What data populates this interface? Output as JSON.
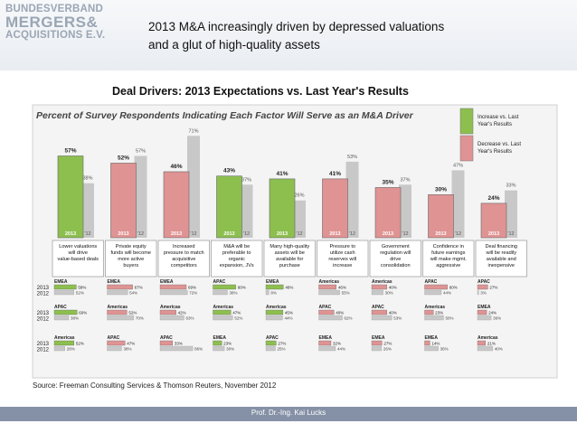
{
  "logo": {
    "line1": "BUNDESVERBAND",
    "line2": "MERGERS&",
    "line3": "ACQUISITIONS E.V."
  },
  "title": {
    "line1": "2013 M&A increasingly driven by depressed valuations",
    "line2": "and a glut of high-quality assets"
  },
  "headline": "Deal Drivers: 2013 Expectations vs. Last Year's Results",
  "footer": "Prof. Dr.-Ing. Kai Lucks",
  "source": "Source: Freeman Consulting Services & Thomson Reuters, November 2012",
  "colors": {
    "increase": "#8dbf4f",
    "decrease": "#e09393",
    "last": "#c8c8c8",
    "footer": "#8591a6"
  },
  "chart_data": {
    "type": "bar",
    "title": "Percent of Survey Respondents Indicating Each Factor Will Serve as an M&A Driver",
    "bar_label_2013": "2013",
    "bar_label_2012": "'12",
    "legend": [
      {
        "label": "Increase vs. Last Year's Results",
        "color": "#8dbf4f"
      },
      {
        "label": "Decrease vs. Last Year's Results",
        "color": "#e09393"
      }
    ],
    "ylim": [
      0,
      80
    ],
    "categories": [
      "Lower valuations will drive value-based deals",
      "Private equity funds will become more active buyers",
      "Increased pressure to match acquisitive competitors",
      "M&A will be preferable to organic expansion, JVs",
      "Many high-quality assets will be available for purchase",
      "Pressure to utilize cash reserves will increase",
      "Government regulation will drive consolidation",
      "Confidence in future earnings will make mgmt. aggressive",
      "Deal financing will be readily available and inexpensive"
    ],
    "series": [
      {
        "name": "2013",
        "values": [
          57,
          52,
          46,
          43,
          41,
          41,
          35,
          30,
          24
        ],
        "labels": [
          "57%",
          "52%",
          "46%",
          "43%",
          "41%",
          "41%",
          "35%",
          "30%",
          "24%"
        ]
      },
      {
        "name": "2012",
        "values": [
          38,
          57,
          71,
          37,
          26,
          53,
          37,
          47,
          33
        ],
        "labels": [
          "38%",
          "57%",
          "71%",
          "37%",
          "26%",
          "53%",
          "37%",
          "47%",
          "33%"
        ]
      }
    ],
    "direction": [
      "increase",
      "decrease",
      "decrease",
      "increase",
      "increase",
      "decrease",
      "decrease",
      "decrease",
      "decrease"
    ],
    "region_year_labels": [
      "2013",
      "2012"
    ],
    "regions": [
      [
        {
          "name": "EMEA",
          "v13": 58,
          "v12": 52,
          "l13": "58%",
          "l12": "52%"
        },
        {
          "name": "APAC",
          "v13": 60,
          "v12": 38,
          "l13": "60%",
          "l12": "38%"
        },
        {
          "name": "Americas",
          "v13": 52,
          "v12": 28,
          "l13": "52%",
          "l12": "28%"
        }
      ],
      [
        {
          "name": "EMEA",
          "v13": 67,
          "v12": 54,
          "l13": "67%",
          "l12": "54%"
        },
        {
          "name": "Americas",
          "v13": 52,
          "v12": 70,
          "l13": "52%",
          "l12": "70%"
        },
        {
          "name": "APAC",
          "v13": 47,
          "v12": 38,
          "l13": "47%",
          "l12": "38%"
        }
      ],
      [
        {
          "name": "EMEA",
          "v13": 69,
          "v12": 72,
          "l13": "69%",
          "l12": "72%"
        },
        {
          "name": "Americas",
          "v13": 42,
          "v12": 63,
          "l13": "42%",
          "l12": "63%"
        },
        {
          "name": "APAC",
          "v13": 33,
          "v12": 86,
          "l13": "33%",
          "l12": "86%"
        }
      ],
      [
        {
          "name": "APAC",
          "v13": 60,
          "v12": 38,
          "l13": "60%",
          "l12": "38%"
        },
        {
          "name": "Americas",
          "v13": 47,
          "v12": 52,
          "l13": "47%",
          "l12": "52%"
        },
        {
          "name": "EMEA",
          "v13": 23,
          "v12": 30,
          "l13": "23%",
          "l12": "30%"
        }
      ],
      [
        {
          "name": "EMEA",
          "v13": 46,
          "v12": 8,
          "l13": "46%",
          "l12": "8%"
        },
        {
          "name": "Americas",
          "v13": 45,
          "v12": 44,
          "l13": "45%",
          "l12": "44%"
        },
        {
          "name": "APAC",
          "v13": 27,
          "v12": 25,
          "l13": "27%",
          "l12": "25%"
        }
      ],
      [
        {
          "name": "Americas",
          "v13": 46,
          "v12": 55,
          "l13": "46%",
          "l12": "55%"
        },
        {
          "name": "APAC",
          "v13": 40,
          "v12": 62,
          "l13": "40%",
          "l12": "62%"
        },
        {
          "name": "EMEA",
          "v13": 32,
          "v12": 44,
          "l13": "32%",
          "l12": "44%"
        }
      ],
      [
        {
          "name": "Americas",
          "v13": 40,
          "v12": 30,
          "l13": "40%",
          "l12": "30%"
        },
        {
          "name": "APAC",
          "v13": 40,
          "v12": 53,
          "l13": "40%",
          "l12": "53%"
        },
        {
          "name": "EMEA",
          "v13": 27,
          "v12": 26,
          "l13": "27%",
          "l12": "26%"
        }
      ],
      [
        {
          "name": "APAC",
          "v13": 60,
          "v12": 44,
          "l13": "60%",
          "l12": "44%"
        },
        {
          "name": "Americas",
          "v13": 23,
          "v12": 50,
          "l13": "23%",
          "l12": "50%"
        },
        {
          "name": "EMEA",
          "v13": 14,
          "v12": 36,
          "l13": "14%",
          "l12": "36%"
        }
      ],
      [
        {
          "name": "APAC",
          "v13": 27,
          "v12": 3,
          "l13": "27%",
          "l12": "3%"
        },
        {
          "name": "EMEA",
          "v13": 24,
          "v12": 36,
          "l13": "24%",
          "l12": "36%"
        },
        {
          "name": "Americas",
          "v13": 21,
          "v12": 40,
          "l13": "21%",
          "l12": "40%"
        }
      ]
    ]
  }
}
